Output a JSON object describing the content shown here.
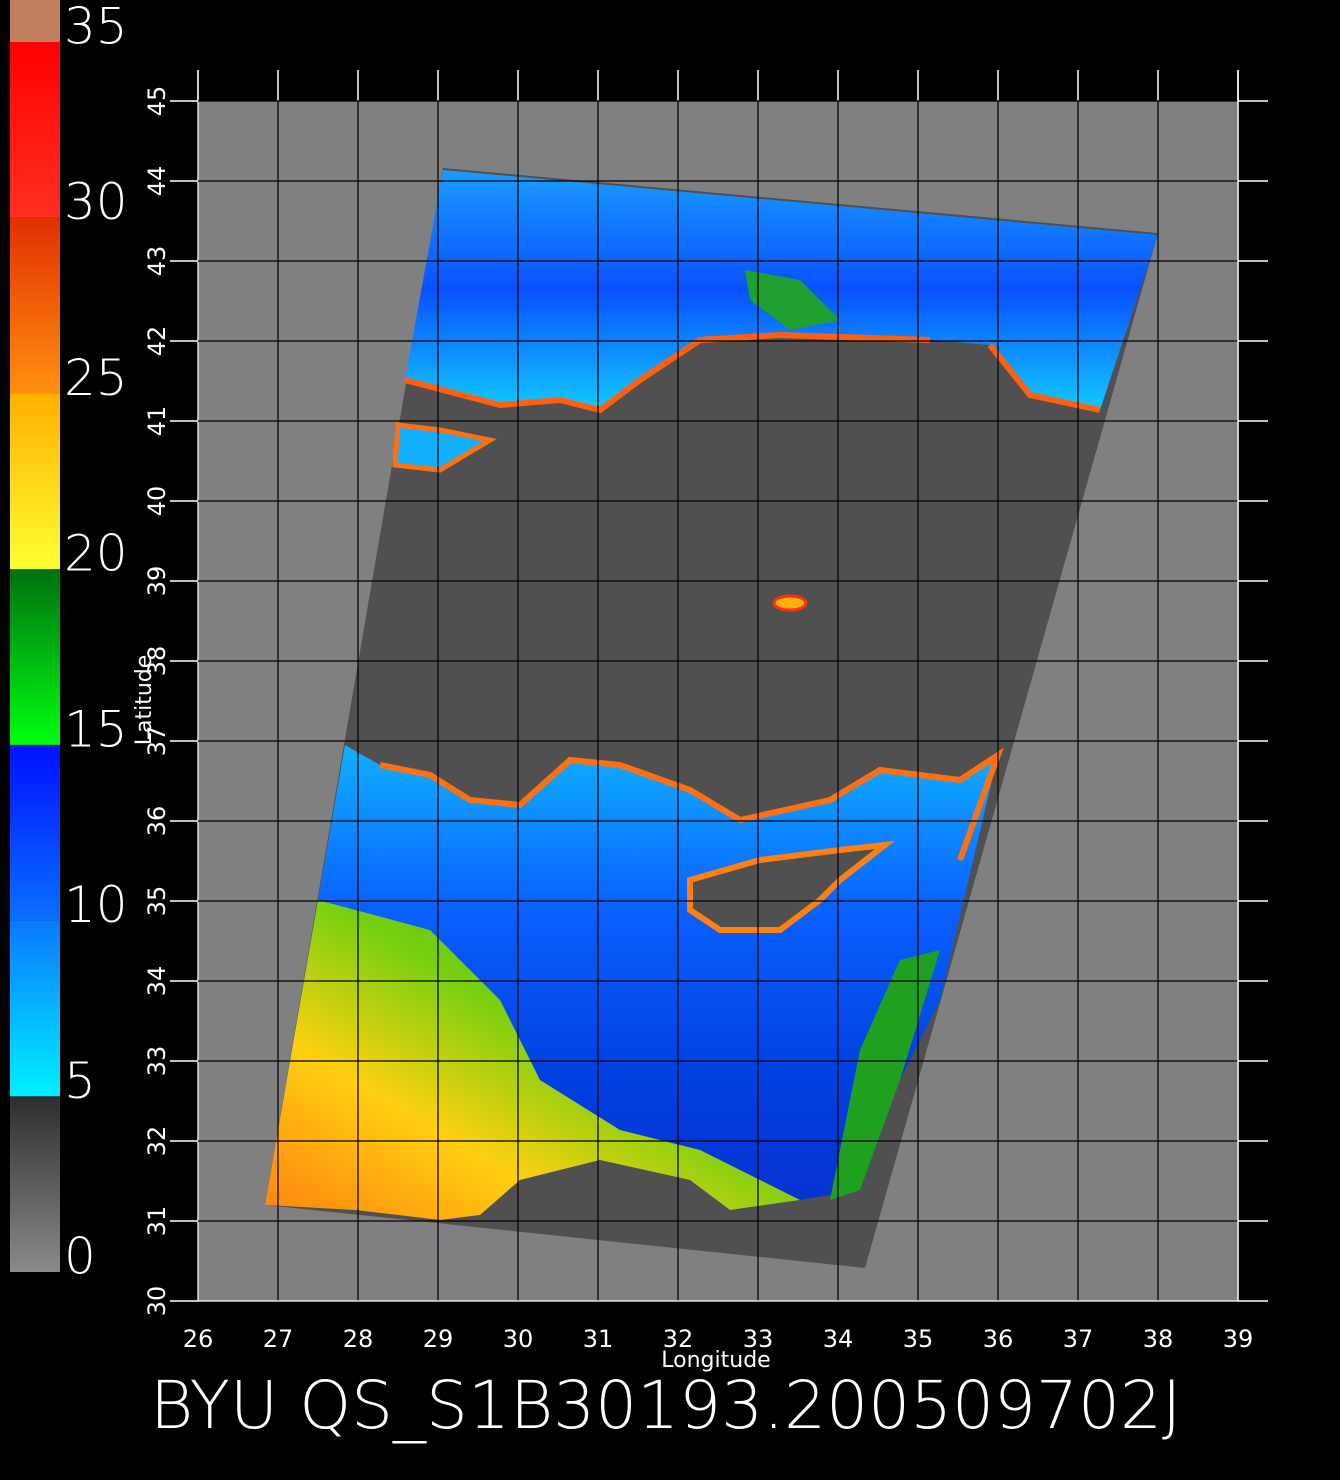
{
  "colorbar": {
    "ticks": [
      0,
      5,
      10,
      15,
      20,
      25,
      30,
      35
    ],
    "colors": [
      [
        "#8a8a8a",
        "#2e2e2e"
      ],
      [
        "#00f0ff",
        "#0a78ff"
      ],
      [
        "#0a70ff",
        "#0010ff"
      ],
      [
        "#00ff10",
        "#007010"
      ],
      [
        "#ffff30",
        "#ffb000"
      ],
      [
        "#ff9010",
        "#e03000"
      ],
      [
        "#ff3020",
        "#ff0000"
      ]
    ],
    "top_color": "#c08060"
  },
  "map": {
    "xlabel": "Longitude",
    "ylabel": "Latitude",
    "xlim": [
      26,
      39
    ],
    "ylim": [
      30,
      45
    ],
    "xticks": [
      26,
      27,
      28,
      29,
      30,
      31,
      32,
      33,
      34,
      35,
      36,
      37,
      38,
      39
    ],
    "yticks": [
      30,
      31,
      32,
      33,
      34,
      35,
      36,
      37,
      38,
      39,
      40,
      41,
      42,
      43,
      44,
      45
    ],
    "grid": true
  },
  "title": "BYU QS_S1B30193.200509702J"
}
